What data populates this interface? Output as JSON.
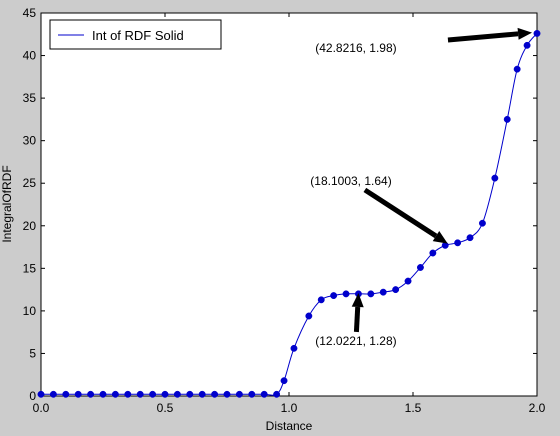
{
  "chart_data": {
    "type": "line",
    "xlabel": "Distance",
    "ylabel": "IntegralOfRDF",
    "xlim": [
      0.0,
      2.0
    ],
    "ylim": [
      0,
      45
    ],
    "xticks": [
      0.0,
      0.5,
      1.0,
      1.5,
      2.0
    ],
    "xtick_labels": [
      "0.0",
      "0.5",
      "1.0",
      "1.5",
      "2.0"
    ],
    "yticks": [
      0,
      5,
      10,
      15,
      20,
      25,
      30,
      35,
      40,
      45
    ],
    "ytick_labels": [
      "0",
      "5",
      "10",
      "15",
      "20",
      "25",
      "30",
      "35",
      "40",
      "45"
    ],
    "grid": false,
    "legend_position": "top-left",
    "series": [
      {
        "name": "Int of RDF Solid",
        "color": "#0000cc",
        "x": [
          0.0,
          0.05,
          0.1,
          0.15,
          0.2,
          0.25,
          0.3,
          0.35,
          0.4,
          0.45,
          0.5,
          0.55,
          0.6,
          0.65,
          0.7,
          0.75,
          0.8,
          0.85,
          0.9,
          0.95,
          0.98,
          1.02,
          1.08,
          1.13,
          1.18,
          1.23,
          1.28,
          1.33,
          1.38,
          1.43,
          1.48,
          1.53,
          1.58,
          1.63,
          1.68,
          1.73,
          1.78,
          1.83,
          1.88,
          1.92,
          1.96,
          2.0
        ],
        "y": [
          0.2,
          0.2,
          0.2,
          0.2,
          0.2,
          0.2,
          0.2,
          0.2,
          0.2,
          0.2,
          0.2,
          0.2,
          0.2,
          0.2,
          0.2,
          0.2,
          0.2,
          0.2,
          0.2,
          0.2,
          1.8,
          5.6,
          9.4,
          11.3,
          11.8,
          12.0,
          12.0,
          12.0,
          12.2,
          12.5,
          13.5,
          15.1,
          16.8,
          17.7,
          18.0,
          18.6,
          20.3,
          25.6,
          32.5,
          38.4,
          41.2,
          42.6
        ]
      }
    ],
    "annotations": [
      {
        "text": "(42.8216, 1.98)",
        "point": [
          1.98,
          42.7
        ],
        "text_anchor": [
          1.27,
          40.4
        ]
      },
      {
        "text": "(18.1003, 1.64)",
        "point": [
          1.64,
          17.9
        ],
        "text_anchor": [
          1.25,
          24.8
        ]
      },
      {
        "text": "(12.0221, 1.28)",
        "point": [
          1.28,
          12.1
        ],
        "text_anchor": [
          1.27,
          6.0
        ]
      }
    ]
  }
}
